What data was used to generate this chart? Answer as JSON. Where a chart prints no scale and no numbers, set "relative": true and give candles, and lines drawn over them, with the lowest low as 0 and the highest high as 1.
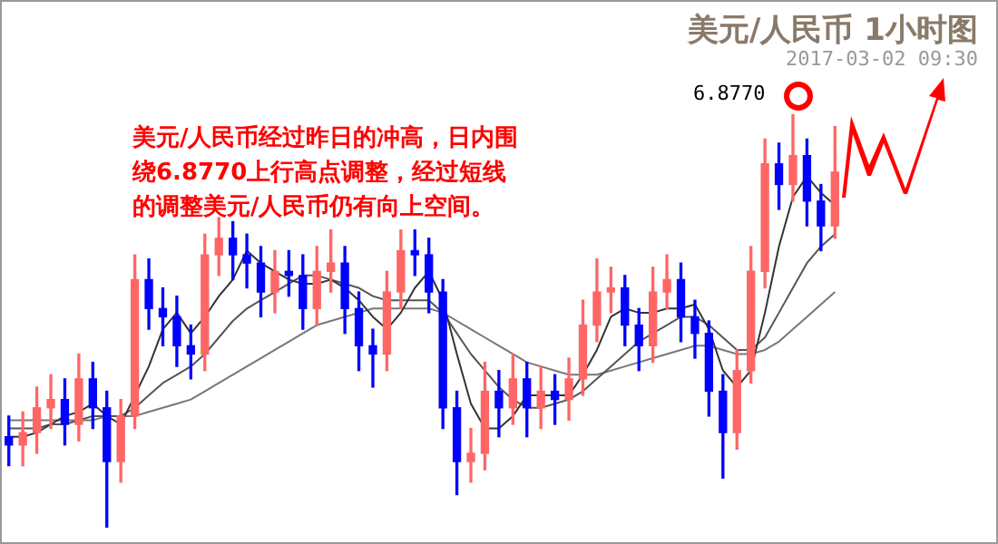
{
  "chart_data": {
    "type": "candlestick",
    "title": "美元/人民币 1小时图",
    "subtitle": "2017-03-02 09:30",
    "relative": true,
    "legend": false,
    "annotations": [
      "美元/人民币经过昨日的冲高，日内围绕6.8770上行高点调整，经过短线的调整美元/人民币仍有向上空间。",
      "6.8770"
    ],
    "categories": [
      null,
      null,
      null,
      null,
      null,
      null,
      null,
      null,
      null,
      null,
      null,
      null,
      null,
      null,
      null,
      null,
      null,
      null,
      null,
      null,
      null,
      null,
      null,
      null,
      null,
      null,
      null,
      null,
      null,
      null,
      null,
      null,
      null,
      null,
      null,
      null,
      null,
      null,
      null,
      null,
      null,
      null,
      null,
      null,
      null,
      null,
      null,
      null,
      null,
      null,
      null,
      null,
      null,
      null,
      null,
      null,
      null,
      null,
      null,
      null
    ],
    "ohlc": [
      [
        0.22,
        0.27,
        0.15,
        0.2
      ],
      [
        0.2,
        0.28,
        0.15,
        0.23
      ],
      [
        0.23,
        0.34,
        0.18,
        0.29
      ],
      [
        0.29,
        0.37,
        0.24,
        0.31
      ],
      [
        0.31,
        0.36,
        0.2,
        0.25
      ],
      [
        0.25,
        0.42,
        0.21,
        0.36
      ],
      [
        0.36,
        0.4,
        0.24,
        0.29
      ],
      [
        0.29,
        0.33,
        0.0,
        0.16
      ],
      [
        0.16,
        0.31,
        0.11,
        0.27
      ],
      [
        0.27,
        0.66,
        0.24,
        0.6
      ],
      [
        0.6,
        0.65,
        0.48,
        0.53
      ],
      [
        0.53,
        0.58,
        0.44,
        0.51
      ],
      [
        0.51,
        0.56,
        0.39,
        0.44
      ],
      [
        0.44,
        0.49,
        0.36,
        0.42
      ],
      [
        0.42,
        0.71,
        0.38,
        0.66
      ],
      [
        0.66,
        0.75,
        0.61,
        0.7
      ],
      [
        0.7,
        0.74,
        0.6,
        0.66
      ],
      [
        0.66,
        0.71,
        0.58,
        0.64
      ],
      [
        0.64,
        0.68,
        0.51,
        0.57
      ],
      [
        0.57,
        0.67,
        0.52,
        0.62
      ],
      [
        0.62,
        0.67,
        0.56,
        0.61
      ],
      [
        0.61,
        0.66,
        0.48,
        0.53
      ],
      [
        0.53,
        0.68,
        0.49,
        0.62
      ],
      [
        0.62,
        0.72,
        0.57,
        0.64
      ],
      [
        0.64,
        0.68,
        0.47,
        0.53
      ],
      [
        0.53,
        0.57,
        0.38,
        0.44
      ],
      [
        0.44,
        0.48,
        0.34,
        0.42
      ],
      [
        0.42,
        0.62,
        0.38,
        0.57
      ],
      [
        0.57,
        0.72,
        0.53,
        0.67
      ],
      [
        0.67,
        0.72,
        0.61,
        0.66
      ],
      [
        0.66,
        0.7,
        0.52,
        0.57
      ],
      [
        0.57,
        0.6,
        0.24,
        0.29
      ],
      [
        0.29,
        0.33,
        0.08,
        0.16
      ],
      [
        0.16,
        0.24,
        0.11,
        0.18
      ],
      [
        0.18,
        0.4,
        0.14,
        0.33
      ],
      [
        0.33,
        0.38,
        0.22,
        0.29
      ],
      [
        0.29,
        0.42,
        0.25,
        0.36
      ],
      [
        0.36,
        0.4,
        0.22,
        0.29
      ],
      [
        0.29,
        0.39,
        0.24,
        0.33
      ],
      [
        0.33,
        0.37,
        0.25,
        0.31
      ],
      [
        0.31,
        0.41,
        0.26,
        0.36
      ],
      [
        0.36,
        0.55,
        0.32,
        0.49
      ],
      [
        0.49,
        0.65,
        0.45,
        0.57
      ],
      [
        0.57,
        0.63,
        0.52,
        0.58
      ],
      [
        0.58,
        0.61,
        0.44,
        0.49
      ],
      [
        0.49,
        0.53,
        0.38,
        0.44
      ],
      [
        0.44,
        0.63,
        0.4,
        0.57
      ],
      [
        0.57,
        0.66,
        0.53,
        0.6
      ],
      [
        0.6,
        0.64,
        0.45,
        0.51
      ],
      [
        0.51,
        0.55,
        0.41,
        0.47
      ],
      [
        0.47,
        0.5,
        0.27,
        0.33
      ],
      [
        0.33,
        0.37,
        0.12,
        0.23
      ],
      [
        0.23,
        0.43,
        0.19,
        0.38
      ],
      [
        0.38,
        0.68,
        0.35,
        0.62
      ],
      [
        0.62,
        0.94,
        0.58,
        0.88
      ],
      [
        0.88,
        0.93,
        0.77,
        0.83
      ],
      [
        0.83,
        1.0,
        0.79,
        0.9
      ],
      [
        0.9,
        0.94,
        0.73,
        0.79
      ],
      [
        0.79,
        0.83,
        0.67,
        0.73
      ],
      [
        0.73,
        0.97,
        0.7,
        0.86
      ]
    ],
    "colors": [
      "#0000ff",
      "#ff6666",
      "#ff6666",
      "#ff6666",
      "#0000ff",
      "#ff6666",
      "#0000ff",
      "#0000ff",
      "#ff6666",
      "#ff6666",
      "#0000ff",
      "#0000ff",
      "#0000ff",
      "#0000ff",
      "#ff6666",
      "#ff6666",
      "#0000ff",
      "#0000ff",
      "#0000ff",
      "#ff6666",
      "#0000ff",
      "#0000ff",
      "#ff6666",
      "#ff6666",
      "#0000ff",
      "#0000ff",
      "#0000ff",
      "#ff6666",
      "#ff6666",
      "#0000ff",
      "#0000ff",
      "#0000ff",
      "#0000ff",
      "#ff6666",
      "#ff6666",
      "#0000ff",
      "#ff6666",
      "#0000ff",
      "#ff6666",
      "#0000ff",
      "#ff6666",
      "#ff6666",
      "#ff6666",
      "#ff6666",
      "#0000ff",
      "#0000ff",
      "#ff6666",
      "#ff6666",
      "#0000ff",
      "#0000ff",
      "#0000ff",
      "#0000ff",
      "#ff6666",
      "#ff6666",
      "#ff6666",
      "#0000ff",
      "#ff6666",
      "#0000ff",
      "#0000ff",
      "#ff6666"
    ],
    "marker": "none",
    "line_style": "solid",
    "series": [
      {
        "type": "line",
        "color": "#333333",
        "values": [
          0.22,
          0.22,
          0.23,
          0.25,
          0.27,
          0.28,
          0.3,
          0.27,
          0.25,
          0.32,
          0.39,
          0.48,
          0.52,
          0.47,
          0.51,
          0.56,
          0.6,
          0.67,
          0.64,
          0.62,
          0.6,
          0.59,
          0.59,
          0.6,
          0.58,
          0.55,
          0.51,
          0.48,
          0.52,
          0.58,
          0.62,
          0.55,
          0.42,
          0.3,
          0.24,
          0.24,
          0.27,
          0.32,
          0.32,
          0.32,
          0.32,
          0.37,
          0.43,
          0.51,
          0.53,
          0.52,
          0.52,
          0.53,
          0.53,
          0.54,
          0.48,
          0.38,
          0.34,
          0.38,
          0.52,
          0.68,
          0.8,
          0.85,
          0.81,
          0.78
        ]
      },
      {
        "type": "line",
        "color": "#555555",
        "values": [
          0.24,
          0.24,
          0.24,
          0.25,
          0.25,
          0.26,
          0.27,
          0.27,
          0.27,
          0.29,
          0.32,
          0.35,
          0.37,
          0.39,
          0.42,
          0.46,
          0.5,
          0.53,
          0.55,
          0.57,
          0.59,
          0.61,
          0.61,
          0.6,
          0.59,
          0.58,
          0.56,
          0.55,
          0.55,
          0.55,
          0.55,
          0.52,
          0.47,
          0.42,
          0.38,
          0.34,
          0.31,
          0.29,
          0.29,
          0.3,
          0.31,
          0.33,
          0.36,
          0.39,
          0.42,
          0.45,
          0.47,
          0.49,
          0.51,
          0.51,
          0.49,
          0.46,
          0.43,
          0.43,
          0.46,
          0.52,
          0.58,
          0.64,
          0.68,
          0.71
        ]
      },
      {
        "type": "line",
        "color": "#777777",
        "values": [
          0.26,
          0.26,
          0.26,
          0.26,
          0.26,
          0.26,
          0.26,
          0.27,
          0.27,
          0.27,
          0.28,
          0.29,
          0.3,
          0.31,
          0.33,
          0.35,
          0.37,
          0.39,
          0.41,
          0.43,
          0.45,
          0.47,
          0.49,
          0.5,
          0.51,
          0.52,
          0.53,
          0.53,
          0.53,
          0.53,
          0.53,
          0.52,
          0.5,
          0.48,
          0.46,
          0.44,
          0.42,
          0.4,
          0.39,
          0.38,
          0.37,
          0.37,
          0.37,
          0.38,
          0.39,
          0.4,
          0.41,
          0.42,
          0.43,
          0.44,
          0.44,
          0.43,
          0.42,
          0.42,
          0.43,
          0.45,
          0.48,
          0.51,
          0.54,
          0.57
        ]
      }
    ]
  }
}
